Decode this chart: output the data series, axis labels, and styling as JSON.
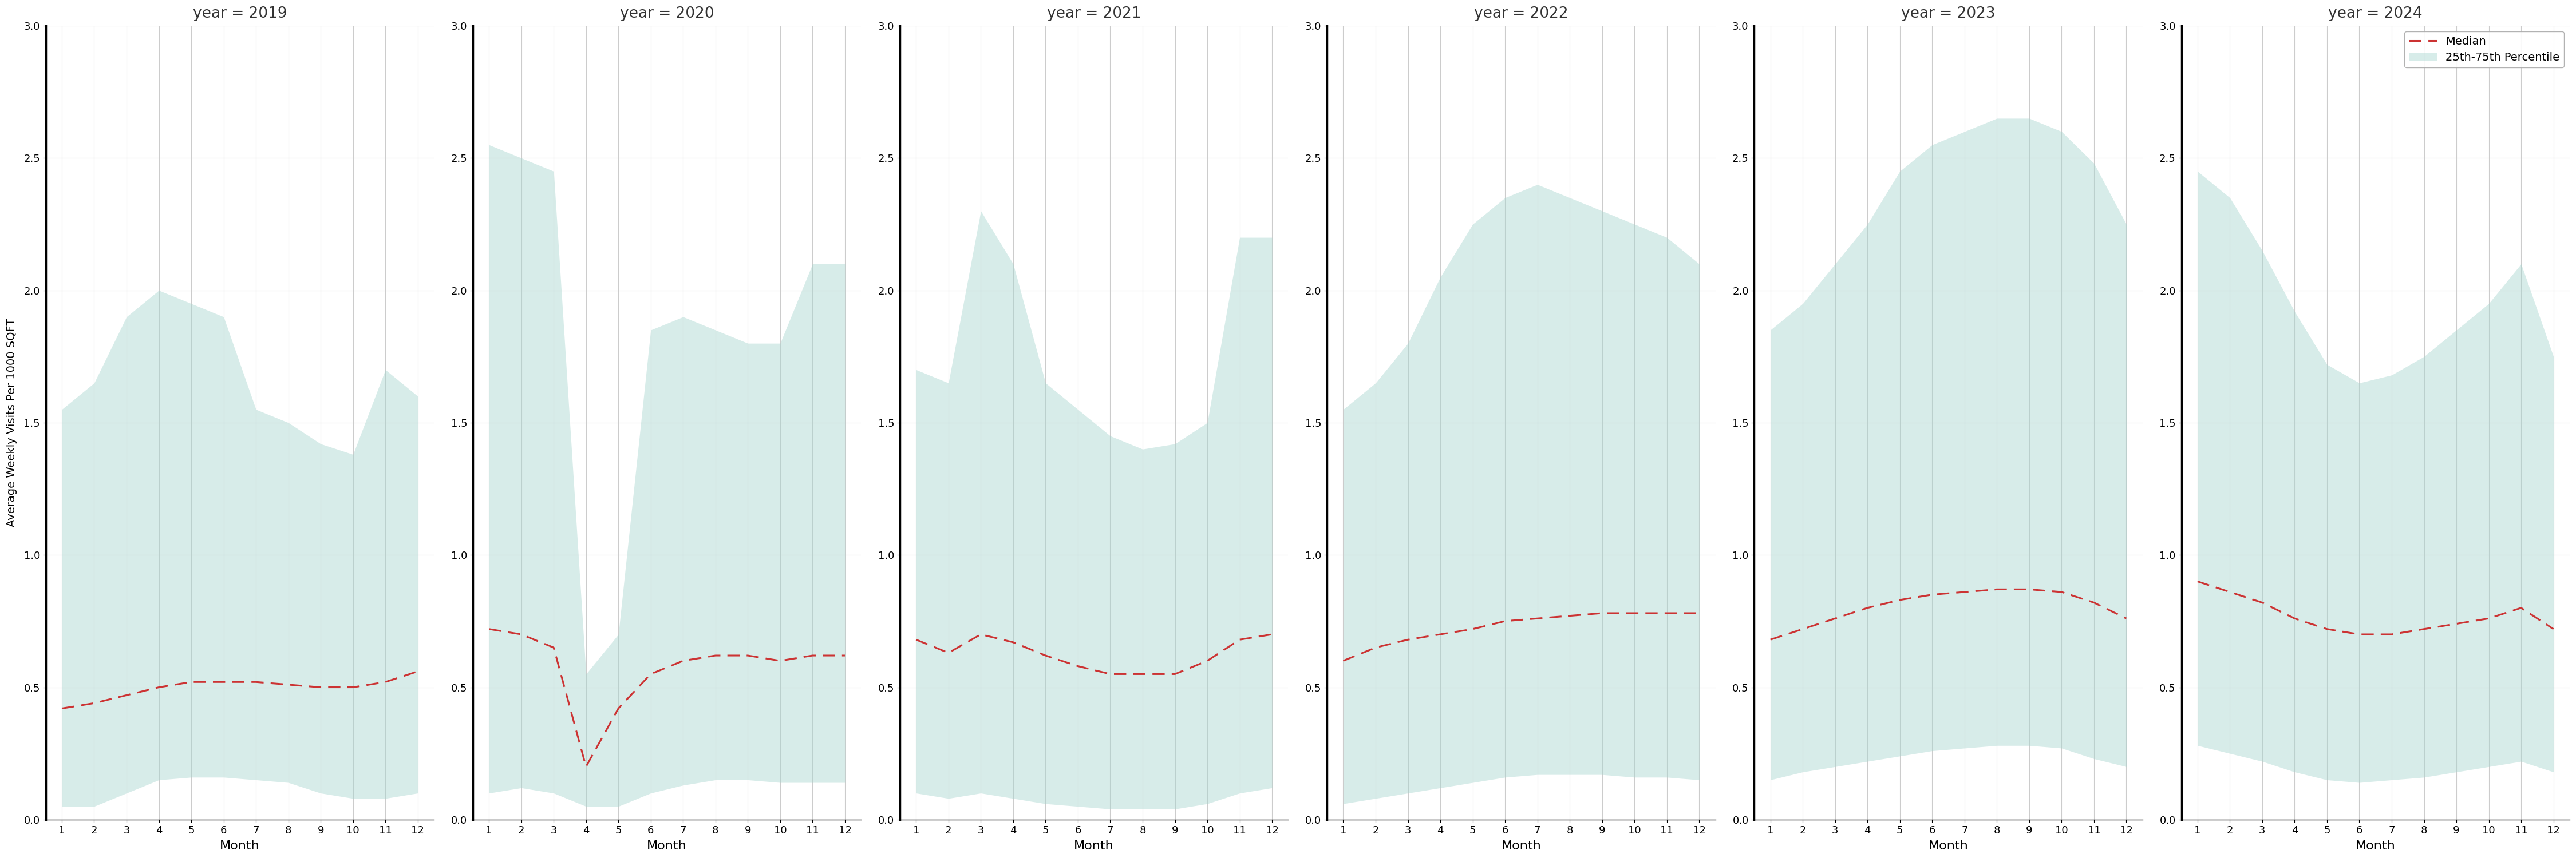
{
  "years": [
    2019,
    2020,
    2021,
    2022,
    2023,
    2024
  ],
  "months": [
    1,
    2,
    3,
    4,
    5,
    6,
    7,
    8,
    9,
    10,
    11,
    12
  ],
  "median": {
    "2019": [
      0.42,
      0.44,
      0.47,
      0.5,
      0.52,
      0.52,
      0.52,
      0.51,
      0.5,
      0.5,
      0.52,
      0.56
    ],
    "2020": [
      0.72,
      0.7,
      0.65,
      0.2,
      0.42,
      0.55,
      0.6,
      0.62,
      0.62,
      0.6,
      0.62,
      0.62
    ],
    "2021": [
      0.68,
      0.63,
      0.7,
      0.67,
      0.62,
      0.58,
      0.55,
      0.55,
      0.55,
      0.6,
      0.68,
      0.7
    ],
    "2022": [
      0.6,
      0.65,
      0.68,
      0.7,
      0.72,
      0.75,
      0.76,
      0.77,
      0.78,
      0.78,
      0.78,
      0.78
    ],
    "2023": [
      0.68,
      0.72,
      0.76,
      0.8,
      0.83,
      0.85,
      0.86,
      0.87,
      0.87,
      0.86,
      0.82,
      0.76
    ],
    "2024": [
      0.9,
      0.86,
      0.82,
      0.76,
      0.72,
      0.7,
      0.7,
      0.72,
      0.74,
      0.76,
      0.8,
      0.72
    ]
  },
  "p25": {
    "2019": [
      0.05,
      0.05,
      0.1,
      0.15,
      0.16,
      0.16,
      0.15,
      0.14,
      0.1,
      0.08,
      0.08,
      0.1
    ],
    "2020": [
      0.1,
      0.12,
      0.1,
      0.05,
      0.05,
      0.1,
      0.13,
      0.15,
      0.15,
      0.14,
      0.14,
      0.14
    ],
    "2021": [
      0.1,
      0.08,
      0.1,
      0.08,
      0.06,
      0.05,
      0.04,
      0.04,
      0.04,
      0.06,
      0.1,
      0.12
    ],
    "2022": [
      0.06,
      0.08,
      0.1,
      0.12,
      0.14,
      0.16,
      0.17,
      0.17,
      0.17,
      0.16,
      0.16,
      0.15
    ],
    "2023": [
      0.15,
      0.18,
      0.2,
      0.22,
      0.24,
      0.26,
      0.27,
      0.28,
      0.28,
      0.27,
      0.23,
      0.2
    ],
    "2024": [
      0.28,
      0.25,
      0.22,
      0.18,
      0.15,
      0.14,
      0.15,
      0.16,
      0.18,
      0.2,
      0.22,
      0.18
    ]
  },
  "p75": {
    "2019": [
      1.55,
      1.65,
      1.9,
      2.0,
      1.95,
      1.9,
      1.55,
      1.5,
      1.42,
      1.38,
      1.7,
      1.6
    ],
    "2020": [
      2.55,
      2.5,
      2.45,
      0.55,
      0.7,
      1.85,
      1.9,
      1.85,
      1.8,
      1.8,
      2.1,
      2.1
    ],
    "2021": [
      1.7,
      1.65,
      2.3,
      2.1,
      1.65,
      1.55,
      1.45,
      1.4,
      1.42,
      1.5,
      2.2,
      2.2
    ],
    "2022": [
      1.55,
      1.65,
      1.8,
      2.05,
      2.25,
      2.35,
      2.4,
      2.35,
      2.3,
      2.25,
      2.2,
      2.1
    ],
    "2023": [
      1.85,
      1.95,
      2.1,
      2.25,
      2.45,
      2.55,
      2.6,
      2.65,
      2.65,
      2.6,
      2.48,
      2.25
    ],
    "2024": [
      2.45,
      2.35,
      2.15,
      1.92,
      1.72,
      1.65,
      1.68,
      1.75,
      1.85,
      1.95,
      2.1,
      1.75
    ]
  },
  "ylim": [
    0.0,
    3.0
  ],
  "yticks": [
    0.0,
    0.5,
    1.0,
    1.5,
    2.0,
    2.5,
    3.0
  ],
  "fill_color": "#a8d5cf",
  "fill_alpha": 0.45,
  "line_color": "#cc3333",
  "ylabel": "Average Weekly Visits Per 1000 SQFT",
  "xlabel": "Month",
  "title_prefix": "year = ",
  "background_color": "#ffffff",
  "grid_color": "#cccccc"
}
